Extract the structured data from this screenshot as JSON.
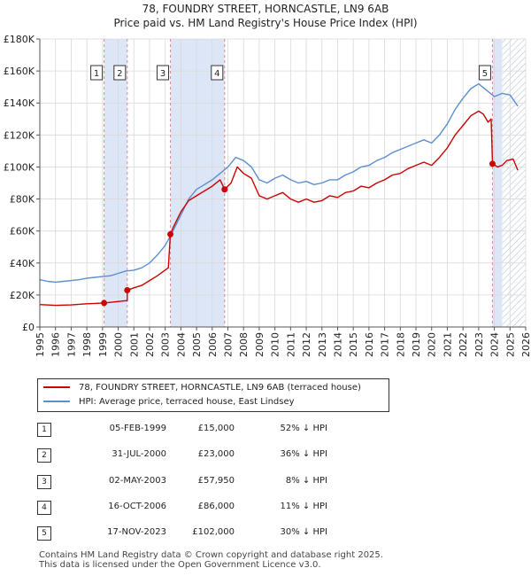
{
  "title_line1": "78, FOUNDRY STREET, HORNCASTLE, LN9 6AB",
  "title_line2": "Price paid vs. HM Land Registry's House Price Index (HPI)",
  "colors": {
    "property": "#cc0000",
    "hpi": "#5b8fd0",
    "shade": "#dde6f7",
    "vline": "#d98a8a",
    "grid": "#d8d8d8"
  },
  "chart_data": {
    "type": "line",
    "xlim": [
      1995,
      2026
    ],
    "ylim": [
      0,
      180000
    ],
    "x_ticks": [
      1995,
      1996,
      1997,
      1998,
      1999,
      2000,
      2001,
      2002,
      2003,
      2004,
      2005,
      2006,
      2007,
      2008,
      2009,
      2010,
      2011,
      2012,
      2013,
      2014,
      2015,
      2016,
      2017,
      2018,
      2019,
      2020,
      2021,
      2022,
      2023,
      2024,
      2025,
      2026
    ],
    "y_ticks": [
      {
        "value": 0,
        "label": "£0"
      },
      {
        "value": 20000,
        "label": "£20K"
      },
      {
        "value": 40000,
        "label": "£40K"
      },
      {
        "value": 60000,
        "label": "£60K"
      },
      {
        "value": 80000,
        "label": "£80K"
      },
      {
        "value": 100000,
        "label": "£100K"
      },
      {
        "value": 120000,
        "label": "£120K"
      },
      {
        "value": 140000,
        "label": "£140K"
      },
      {
        "value": 160000,
        "label": "£160K"
      },
      {
        "value": 180000,
        "label": "£180K"
      }
    ],
    "shaded_ranges": [
      [
        1999.1,
        2000.58
      ],
      [
        2003.33,
        2006.79
      ],
      [
        2023.88,
        2024.5
      ]
    ],
    "hatched_range": [
      2024.5,
      2026
    ],
    "sale_markers": [
      {
        "label": "1",
        "x": 1999.1,
        "y": 15000
      },
      {
        "label": "2",
        "x": 2000.58,
        "y": 23000
      },
      {
        "label": "3",
        "x": 2003.33,
        "y": 57950
      },
      {
        "label": "4",
        "x": 2006.79,
        "y": 86000
      },
      {
        "label": "5",
        "x": 2023.88,
        "y": 102000
      }
    ],
    "series": [
      {
        "name": "78, FOUNDRY STREET, HORNCASTLE, LN9 6AB (terraced house)",
        "color": "#cc0000",
        "points": [
          [
            1995,
            14000
          ],
          [
            1996,
            13500
          ],
          [
            1997,
            13800
          ],
          [
            1998,
            14500
          ],
          [
            1999.1,
            15000
          ],
          [
            1999.5,
            15400
          ],
          [
            2000.58,
            16500
          ],
          [
            2000.58,
            23000
          ],
          [
            2001,
            24500
          ],
          [
            2001.5,
            26000
          ],
          [
            2002,
            29000
          ],
          [
            2002.5,
            32000
          ],
          [
            2003.2,
            37000
          ],
          [
            2003.33,
            57950
          ],
          [
            2003.5,
            62000
          ],
          [
            2004,
            72000
          ],
          [
            2004.5,
            79000
          ],
          [
            2005,
            82000
          ],
          [
            2005.5,
            85000
          ],
          [
            2006,
            88000
          ],
          [
            2006.5,
            92000
          ],
          [
            2006.79,
            86000
          ],
          [
            2007.2,
            90000
          ],
          [
            2007.6,
            100000
          ],
          [
            2008,
            96000
          ],
          [
            2008.5,
            93000
          ],
          [
            2009,
            82000
          ],
          [
            2009.5,
            80000
          ],
          [
            2010,
            82000
          ],
          [
            2010.5,
            84000
          ],
          [
            2011,
            80000
          ],
          [
            2011.5,
            78000
          ],
          [
            2012,
            80000
          ],
          [
            2012.5,
            78000
          ],
          [
            2013,
            79000
          ],
          [
            2013.5,
            82000
          ],
          [
            2014,
            81000
          ],
          [
            2014.5,
            84000
          ],
          [
            2015,
            85000
          ],
          [
            2015.5,
            88000
          ],
          [
            2016,
            87000
          ],
          [
            2016.5,
            90000
          ],
          [
            2017,
            92000
          ],
          [
            2017.5,
            95000
          ],
          [
            2018,
            96000
          ],
          [
            2018.5,
            99000
          ],
          [
            2019,
            101000
          ],
          [
            2019.5,
            103000
          ],
          [
            2020,
            101000
          ],
          [
            2020.5,
            106000
          ],
          [
            2021,
            112000
          ],
          [
            2021.5,
            120000
          ],
          [
            2022,
            126000
          ],
          [
            2022.5,
            132000
          ],
          [
            2023,
            135000
          ],
          [
            2023.3,
            133000
          ],
          [
            2023.6,
            128000
          ],
          [
            2023.8,
            130000
          ],
          [
            2023.88,
            102000
          ],
          [
            2024.2,
            100000
          ],
          [
            2024.5,
            101000
          ],
          [
            2024.8,
            104000
          ],
          [
            2025.2,
            105000
          ],
          [
            2025.5,
            98000
          ]
        ]
      },
      {
        "name": "HPI: Average price, terraced house, East Lindsey",
        "color": "#5b8fd0",
        "points": [
          [
            1995,
            29500
          ],
          [
            1995.5,
            28500
          ],
          [
            1996,
            28000
          ],
          [
            1996.5,
            28500
          ],
          [
            1997,
            29000
          ],
          [
            1997.5,
            29500
          ],
          [
            1998,
            30500
          ],
          [
            1998.5,
            31000
          ],
          [
            1999,
            31500
          ],
          [
            1999.5,
            32000
          ],
          [
            2000,
            33500
          ],
          [
            2000.5,
            35000
          ],
          [
            2001,
            35500
          ],
          [
            2001.5,
            37000
          ],
          [
            2002,
            40000
          ],
          [
            2002.5,
            45000
          ],
          [
            2003,
            51000
          ],
          [
            2003.5,
            60000
          ],
          [
            2004,
            70000
          ],
          [
            2004.5,
            80000
          ],
          [
            2005,
            86000
          ],
          [
            2005.5,
            89000
          ],
          [
            2006,
            92000
          ],
          [
            2006.5,
            96000
          ],
          [
            2007,
            100000
          ],
          [
            2007.5,
            106000
          ],
          [
            2008,
            104000
          ],
          [
            2008.5,
            100000
          ],
          [
            2009,
            92000
          ],
          [
            2009.5,
            90000
          ],
          [
            2010,
            93000
          ],
          [
            2010.5,
            95000
          ],
          [
            2011,
            92000
          ],
          [
            2011.5,
            90000
          ],
          [
            2012,
            91000
          ],
          [
            2012.5,
            89000
          ],
          [
            2013,
            90000
          ],
          [
            2013.5,
            92000
          ],
          [
            2014,
            92000
          ],
          [
            2014.5,
            95000
          ],
          [
            2015,
            97000
          ],
          [
            2015.5,
            100000
          ],
          [
            2016,
            101000
          ],
          [
            2016.5,
            104000
          ],
          [
            2017,
            106000
          ],
          [
            2017.5,
            109000
          ],
          [
            2018,
            111000
          ],
          [
            2018.5,
            113000
          ],
          [
            2019,
            115000
          ],
          [
            2019.5,
            117000
          ],
          [
            2020,
            115000
          ],
          [
            2020.5,
            120000
          ],
          [
            2021,
            127000
          ],
          [
            2021.5,
            136000
          ],
          [
            2022,
            143000
          ],
          [
            2022.5,
            149000
          ],
          [
            2023,
            152000
          ],
          [
            2023.5,
            148000
          ],
          [
            2024,
            144000
          ],
          [
            2024.5,
            146000
          ],
          [
            2025,
            145000
          ],
          [
            2025.5,
            138000
          ]
        ]
      }
    ]
  },
  "legend": [
    {
      "label": "78, FOUNDRY STREET, HORNCASTLE, LN9 6AB (terraced house)",
      "color": "#cc0000"
    },
    {
      "label": "HPI: Average price, terraced house, East Lindsey",
      "color": "#5b8fd0"
    }
  ],
  "transactions": [
    {
      "num": "1",
      "date": "05-FEB-1999",
      "price": "£15,000",
      "hpi": "52% ↓ HPI"
    },
    {
      "num": "2",
      "date": "31-JUL-2000",
      "price": "£23,000",
      "hpi": "36% ↓ HPI"
    },
    {
      "num": "3",
      "date": "02-MAY-2003",
      "price": "£57,950",
      "hpi": "8% ↓ HPI"
    },
    {
      "num": "4",
      "date": "16-OCT-2006",
      "price": "£86,000",
      "hpi": "11% ↓ HPI"
    },
    {
      "num": "5",
      "date": "17-NOV-2023",
      "price": "£102,000",
      "hpi": "30% ↓ HPI"
    }
  ],
  "footer_line1": "Contains HM Land Registry data © Crown copyright and database right 2025.",
  "footer_line2": "This data is licensed under the Open Government Licence v3.0."
}
